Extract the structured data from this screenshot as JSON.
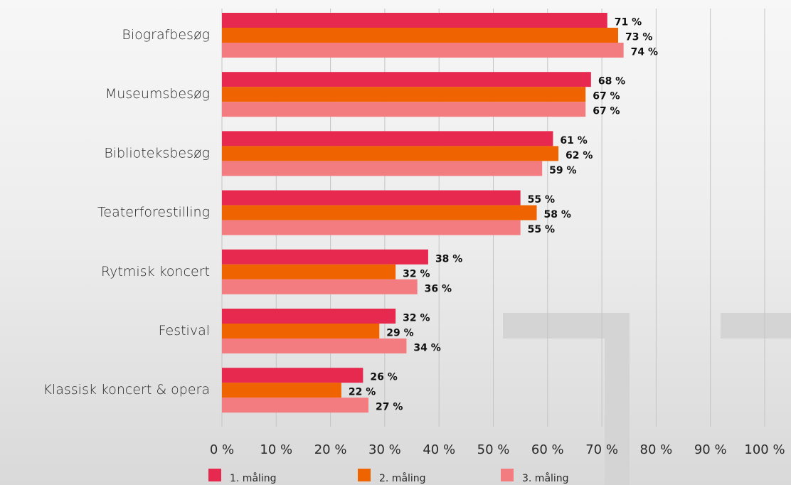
{
  "chart_data": {
    "type": "bar",
    "orientation": "horizontal",
    "categories": [
      "Biografbesøg",
      "Museumsbesøg",
      "Biblioteksbesøg",
      "Teaterforestilling",
      "Rytmisk koncert",
      "Festival",
      "Klassisk koncert & opera"
    ],
    "series": [
      {
        "name": "1. måling",
        "color": "#e8294f",
        "values": [
          71,
          68,
          61,
          55,
          38,
          32,
          26
        ],
        "value_labels": [
          "71 %",
          "68 %",
          "61 %",
          "55 %",
          "38 %",
          "32 %",
          "26 %"
        ]
      },
      {
        "name": "2. måling",
        "color": "#ef6300",
        "values": [
          73,
          67,
          62,
          58,
          32,
          29,
          22
        ],
        "value_labels": [
          "73 %",
          "67 %",
          "62 %",
          "58 %",
          "32 %",
          "29 %",
          "22 %"
        ]
      },
      {
        "name": "3. måling",
        "color": "#f27c80",
        "values": [
          74,
          67,
          59,
          55,
          36,
          34,
          27
        ],
        "value_labels": [
          "74 %",
          "67 %",
          "59 %",
          "55 %",
          "36 %",
          "34 %",
          "27 %"
        ]
      }
    ],
    "xlim": [
      0,
      100
    ],
    "xticks": [
      {
        "value": 0,
        "label": "0 %"
      },
      {
        "value": 10,
        "label": "10 %"
      },
      {
        "value": 20,
        "label": "20 %"
      },
      {
        "value": 30,
        "label": "30 %"
      },
      {
        "value": 40,
        "label": "40 %"
      },
      {
        "value": 50,
        "label": "50 %"
      },
      {
        "value": 60,
        "label": "60 %"
      },
      {
        "value": 70,
        "label": "70 %"
      },
      {
        "value": 80,
        "label": "80 %"
      },
      {
        "value": 90,
        "label": "90 %"
      },
      {
        "value": 100,
        "label": "100 %"
      }
    ],
    "grid": true,
    "legend": "bottom"
  }
}
